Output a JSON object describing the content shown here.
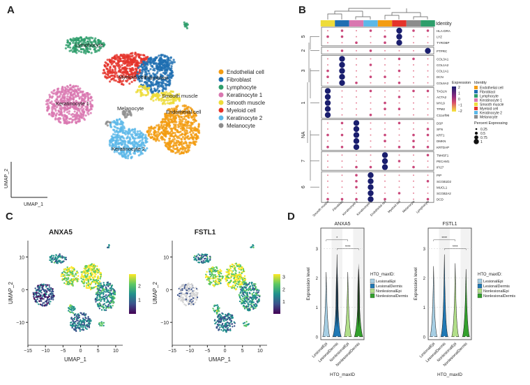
{
  "panels": {
    "a": "A",
    "b": "B",
    "c": "C",
    "d": "D"
  },
  "panel_a": {
    "xlabel": "UMAP_1",
    "ylabel": "UMAP_2",
    "legend": [
      {
        "label": "Endothelial cell",
        "color": "#F39C12"
      },
      {
        "label": "Fibroblast",
        "color": "#1F6FB2"
      },
      {
        "label": "Lymphocyte",
        "color": "#2E9E6B"
      },
      {
        "label": "Keratinocyte 1",
        "color": "#D977B0"
      },
      {
        "label": "Smooth muscle",
        "color": "#EEDC3A"
      },
      {
        "label": "Myeloid cell",
        "color": "#E5332A"
      },
      {
        "label": "Keratinocyte 2",
        "color": "#5BB8E8"
      },
      {
        "label": "Melanocyte",
        "color": "#8C8C8C"
      }
    ],
    "cluster_labels": [
      "Lymphocyte",
      "Myeloid cell",
      "Fibroblast",
      "Smooth muscle",
      "Keratinocyte 1",
      "Melanocyte",
      "Endothelial cell",
      "Keratinocyte 2"
    ]
  },
  "chart_data": [
    {
      "type": "dotplot",
      "columns": [
        "Smooth muscle",
        "Fibroblast",
        "Keratinocyte 1",
        "Keratinocyte 2",
        "Endothelial cell",
        "Myeloid cell",
        "Melanocyte",
        "Lymphocyte"
      ],
      "column_colors": [
        "#EEDC3A",
        "#1F6FB2",
        "#D977B0",
        "#5BB8E8",
        "#F39C12",
        "#E5332A",
        "#8C8C8C",
        "#2E9E6B"
      ],
      "identity_label": "Identity",
      "groups": [
        {
          "cluster": "5",
          "genes": [
            "HLA-DRA",
            "LYZ",
            "TYROBP"
          ],
          "high_in": "Myeloid cell"
        },
        {
          "cluster": "2",
          "genes": [
            "PTPRC"
          ],
          "high_in": "Lymphocyte"
        },
        {
          "cluster": "3",
          "genes": [
            "COL3A1",
            "COL1A2",
            "COL1A1",
            "DCN",
            "COL6A2"
          ],
          "high_in": "Fibroblast"
        },
        {
          "cluster": "1",
          "genes": [
            "TAGLN",
            "ACTA2",
            "MYL9",
            "TPM2",
            "C11orf96"
          ],
          "high_in": "Smooth muscle"
        },
        {
          "cluster": "NA",
          "genes": [
            "DSP",
            "SFN",
            "KRT1",
            "DMKN",
            "KRTDAP"
          ],
          "high_in": "Keratinocyte 1"
        },
        {
          "cluster": "7",
          "genes": [
            "TM4SF1",
            "PECAM1",
            "IFI27"
          ],
          "high_in": "Endothelial cell"
        },
        {
          "cluster": "6",
          "genes": [
            "PIP",
            "SCGB1D2",
            "MUCL1",
            "SCGB2A2",
            "DCD"
          ],
          "high_in": "Keratinocyte 2"
        }
      ],
      "expression_legend": {
        "title": "Expression",
        "ticks": [
          "2",
          "1",
          "0",
          "−1",
          "−2"
        ],
        "range": [
          -2,
          2
        ]
      },
      "identity_legend": {
        "title": "Identity"
      },
      "size_legend": {
        "title": "Percent Expressing",
        "values": [
          "0.25",
          "0.5",
          "0.75",
          "1"
        ]
      }
    },
    {
      "type": "scatter",
      "title": "ANXA5",
      "xlabel": "UMAP_1",
      "ylabel": "UMAP_2",
      "xticks": [
        "−15",
        "−10",
        "−5",
        "0",
        "5",
        "10"
      ],
      "yticks": [
        "10",
        "0",
        "−10"
      ],
      "xlim": [
        -15,
        12
      ],
      "ylim": [
        -17,
        15
      ],
      "colorbar_ticks": [
        "2",
        "1"
      ],
      "color_range": [
        0,
        2.8
      ]
    },
    {
      "type": "scatter",
      "title": "FSTL1",
      "xlabel": "UMAP_1",
      "ylabel": "UMAP_2",
      "xticks": [
        "−15",
        "−10",
        "−5",
        "0",
        "5",
        "10"
      ],
      "yticks": [
        "10",
        "0",
        "−10"
      ],
      "xlim": [
        -15,
        12
      ],
      "ylim": [
        -17,
        15
      ],
      "colorbar_ticks": [
        "3",
        "2",
        "1"
      ],
      "color_range": [
        0,
        3.2
      ]
    },
    {
      "type": "violin",
      "title": "ANXA5",
      "xlabel": "HTO_maxID",
      "ylabel": "Expression level",
      "categories": [
        "LesionalEpi",
        "LesionalDermis",
        "NonlesionalEpi",
        "NonlesionalDermis"
      ],
      "colors": [
        "#A6CEE3",
        "#1F78B4",
        "#B2DF8A",
        "#33A02C"
      ],
      "max": [
        2.2,
        2.8,
        2.2,
        2.3
      ],
      "yticks": [
        "0",
        "1",
        "2",
        "3"
      ],
      "ylim": [
        -0.1,
        3.7
      ],
      "comparisons": [
        {
          "from": "LesionalEpi",
          "to": "NonlesionalEpi",
          "label": "*"
        },
        {
          "from": "LesionalDermis",
          "to": "NonlesionalDermis",
          "label": "****"
        }
      ],
      "legend_title": "HTO_maxID:"
    },
    {
      "type": "violin",
      "title": "FSTL1",
      "xlabel": "HTO_maxID",
      "ylabel": "Expression level",
      "categories": [
        "LesionalEpi",
        "LesionalDermis",
        "NonlesionalEpi",
        "NonlesionalDermis"
      ],
      "colors": [
        "#A6CEE3",
        "#1F78B4",
        "#B2DF8A",
        "#33A02C"
      ],
      "max": [
        2.4,
        2.8,
        2.5,
        2.3
      ],
      "yticks": [
        "0",
        "1",
        "2",
        "3"
      ],
      "ylim": [
        -0.1,
        3.7
      ],
      "comparisons": [
        {
          "from": "LesionalEpi",
          "to": "NonlesionalEpi",
          "label": "****"
        },
        {
          "from": "LesionalDermis",
          "to": "NonlesionalDermis",
          "label": "****"
        }
      ],
      "legend_title": "HTO_maxID:"
    }
  ]
}
